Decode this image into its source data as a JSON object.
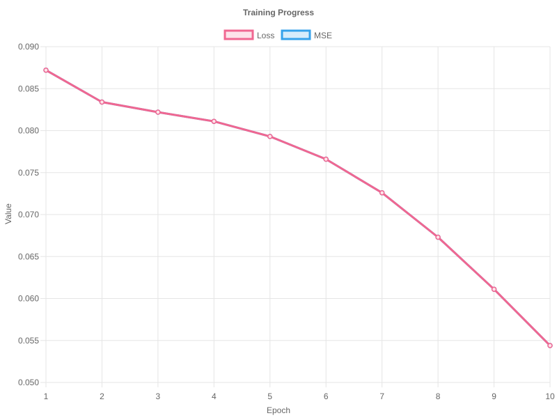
{
  "chart_data": {
    "type": "line",
    "title": "Training Progress",
    "xlabel": "Epoch",
    "ylabel": "Value",
    "x": [
      1,
      2,
      3,
      4,
      5,
      6,
      7,
      8,
      9,
      10
    ],
    "ylim": [
      0.05,
      0.09
    ],
    "y_ticks": [
      "0.050",
      "0.055",
      "0.060",
      "0.065",
      "0.070",
      "0.075",
      "0.080",
      "0.085",
      "0.090"
    ],
    "x_ticks": [
      "1",
      "2",
      "3",
      "4",
      "5",
      "6",
      "7",
      "8",
      "9",
      "10"
    ],
    "grid": true,
    "legend_position": "top",
    "series": [
      {
        "name": "Loss",
        "color": "#f06791",
        "fill": "#fde3ea",
        "values": [
          0.0872,
          0.0834,
          0.0822,
          0.0811,
          0.0793,
          0.0766,
          0.0726,
          0.0673,
          0.0611,
          0.0544
        ]
      },
      {
        "name": "MSE",
        "color": "#36a2eb",
        "fill": "#d7ecfb",
        "values": [
          0.0872,
          0.0834,
          0.0822,
          0.0811,
          0.0793,
          0.0766,
          0.0726,
          0.0673,
          0.0611,
          0.0544
        ]
      }
    ]
  }
}
